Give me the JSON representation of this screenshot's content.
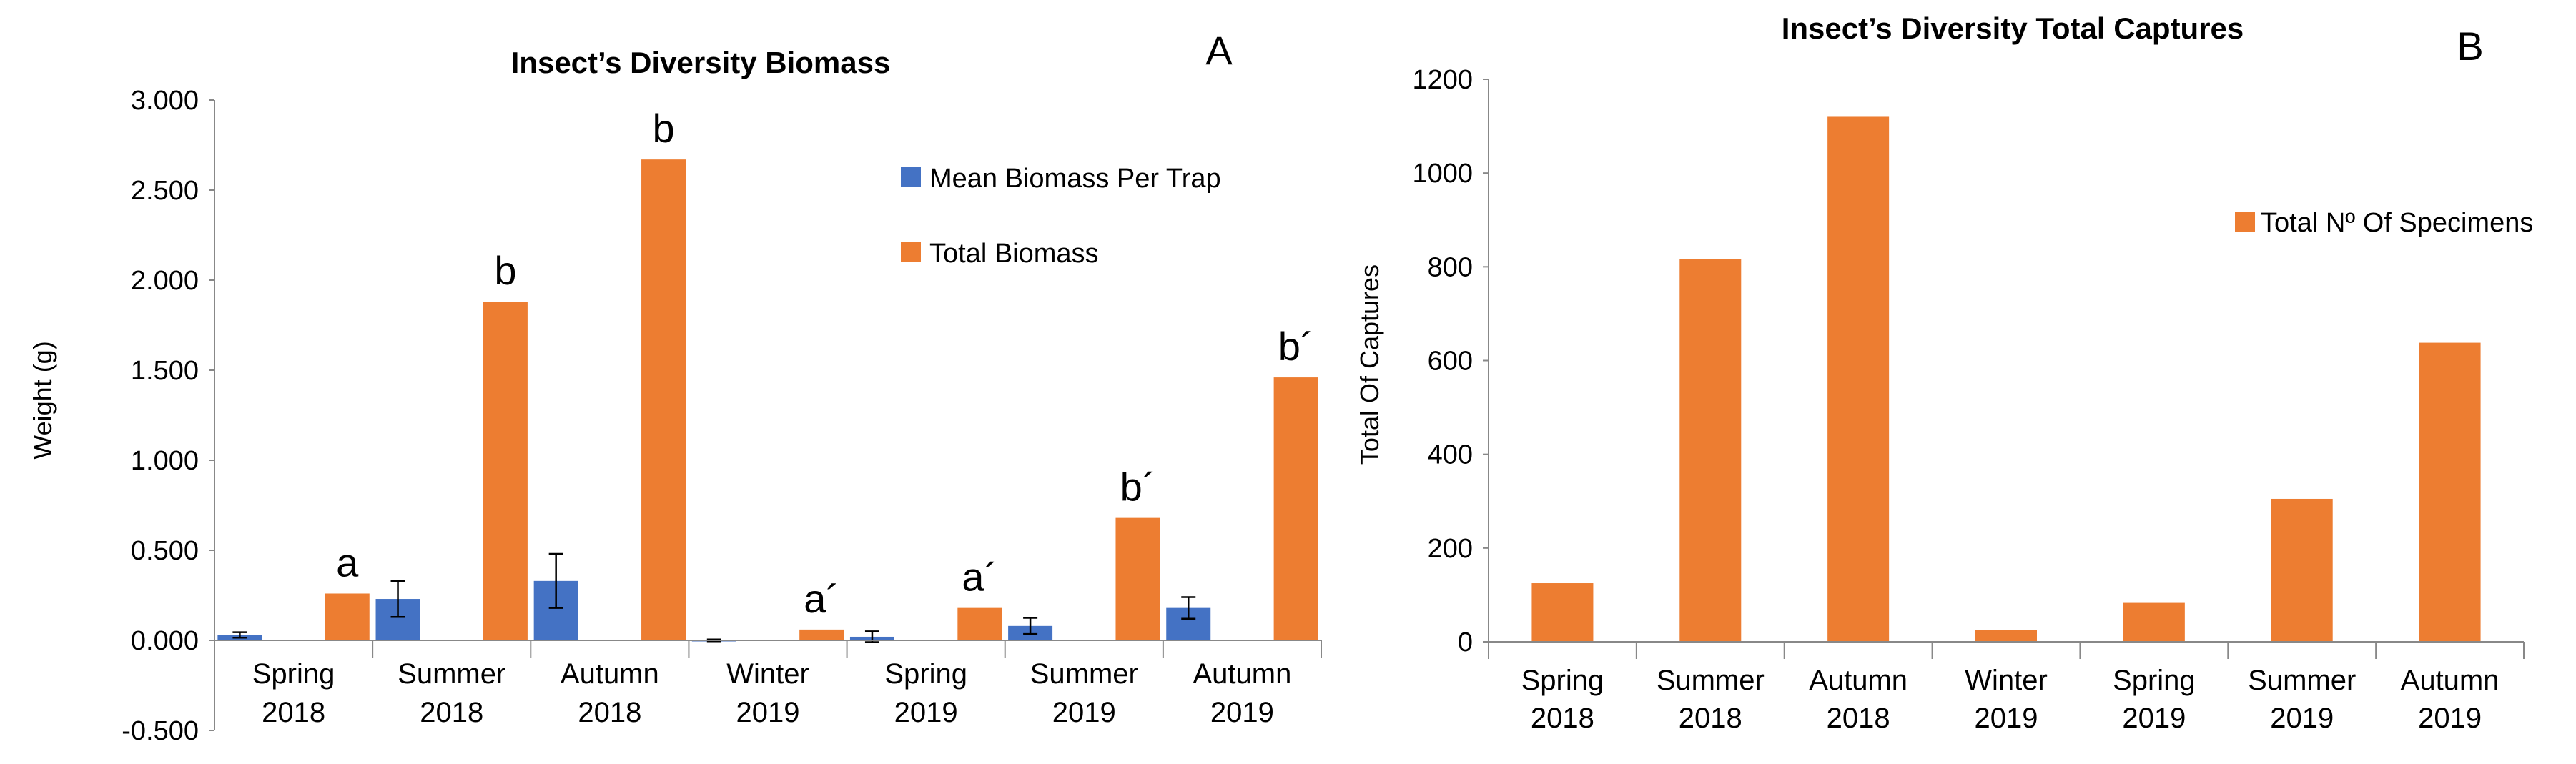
{
  "colors": {
    "mean_biomass": "#4472C4",
    "total_biomass": "#ED7D31",
    "total_captures": "#ED7D31",
    "axis": "#888888",
    "error_bar": "#000000"
  },
  "chart_data": [
    {
      "panel": "A",
      "type": "bar",
      "title": "Insect’s Diversity Biomass",
      "xlabel": "",
      "ylabel": "Weight (g)",
      "ylim": [
        -0.5,
        3.0
      ],
      "yticks": [
        3.0,
        2.5,
        2.0,
        1.5,
        1.0,
        0.5,
        0.0,
        -0.5
      ],
      "ytick_labels": [
        "3.000",
        "2.500",
        "2.000",
        "1.500",
        "1.000",
        "0.500",
        "0.000",
        "-0.500"
      ],
      "categories": [
        {
          "season": "Spring",
          "year": "2018"
        },
        {
          "season": "Summer",
          "year": "2018"
        },
        {
          "season": "Autumn",
          "year": "2018"
        },
        {
          "season": "Winter",
          "year": "2019"
        },
        {
          "season": "Spring",
          "year": "2019"
        },
        {
          "season": "Summer",
          "year": "2019"
        },
        {
          "season": "Autumn",
          "year": "2019"
        }
      ],
      "series": [
        {
          "name": "Mean Biomass Per Trap",
          "values": [
            0.03,
            0.23,
            0.33,
            0.0,
            0.02,
            0.08,
            0.18
          ],
          "error": [
            0.015,
            0.1,
            0.15,
            0.005,
            0.03,
            0.045,
            0.06
          ]
        },
        {
          "name": "Total Biomass",
          "values": [
            0.26,
            1.88,
            2.67,
            0.06,
            0.18,
            0.68,
            1.46
          ]
        }
      ],
      "significance_labels": [
        "a",
        "b",
        "b",
        "a´",
        "a´",
        "b´",
        "b´"
      ],
      "legend_position": "top-right"
    },
    {
      "panel": "B",
      "type": "bar",
      "title": "Insect’s Diversity Total Captures",
      "xlabel": "",
      "ylabel": "Total Of Captures",
      "ylim": [
        0,
        1200
      ],
      "yticks": [
        1200,
        1000,
        800,
        600,
        400,
        200,
        0
      ],
      "ytick_labels": [
        "1200",
        "1000",
        "800",
        "600",
        "400",
        "200",
        "0"
      ],
      "categories": [
        {
          "season": "Spring",
          "year": "2018"
        },
        {
          "season": "Summer",
          "year": "2018"
        },
        {
          "season": "Autumn",
          "year": "2018"
        },
        {
          "season": "Winter",
          "year": "2019"
        },
        {
          "season": "Spring",
          "year": "2019"
        },
        {
          "season": "Summer",
          "year": "2019"
        },
        {
          "season": "Autumn",
          "year": "2019"
        }
      ],
      "series": [
        {
          "name": "Total Nº Of Specimens",
          "values": [
            125,
            817,
            1120,
            25,
            83,
            305,
            638
          ]
        }
      ],
      "legend_position": "right"
    }
  ]
}
